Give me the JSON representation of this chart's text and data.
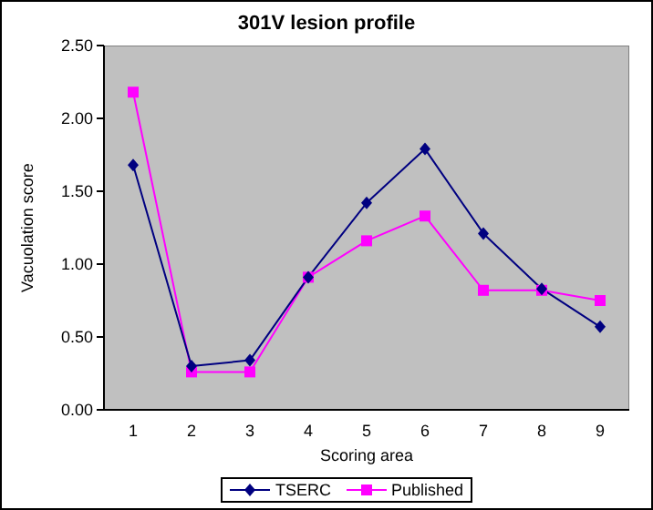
{
  "chart_data": {
    "type": "line",
    "title": "301V lesion profile",
    "xlabel": "Scoring area",
    "ylabel": "Vacuolation score",
    "categories": [
      "1",
      "2",
      "3",
      "4",
      "5",
      "6",
      "7",
      "8",
      "9"
    ],
    "series": [
      {
        "name": "TSERC",
        "color": "#000080",
        "marker": "diamond",
        "values": [
          1.68,
          0.3,
          0.34,
          0.91,
          1.42,
          1.79,
          1.21,
          0.83,
          0.57
        ]
      },
      {
        "name": "Published",
        "color": "#ff00ff",
        "marker": "square",
        "values": [
          2.18,
          0.26,
          0.26,
          0.91,
          1.16,
          1.33,
          0.82,
          0.82,
          0.75
        ]
      }
    ],
    "ylim": [
      0,
      2.5
    ],
    "yticks": [
      {
        "value": 0,
        "label": "0.00"
      },
      {
        "value": 0.5,
        "label": "0.50"
      },
      {
        "value": 1,
        "label": "1.00"
      },
      {
        "value": 1.5,
        "label": "1.50"
      },
      {
        "value": 2,
        "label": "2.00"
      },
      {
        "value": 2.5,
        "label": "2.50"
      }
    ],
    "grid": false,
    "legend": "bottom",
    "line_style": "solid"
  }
}
